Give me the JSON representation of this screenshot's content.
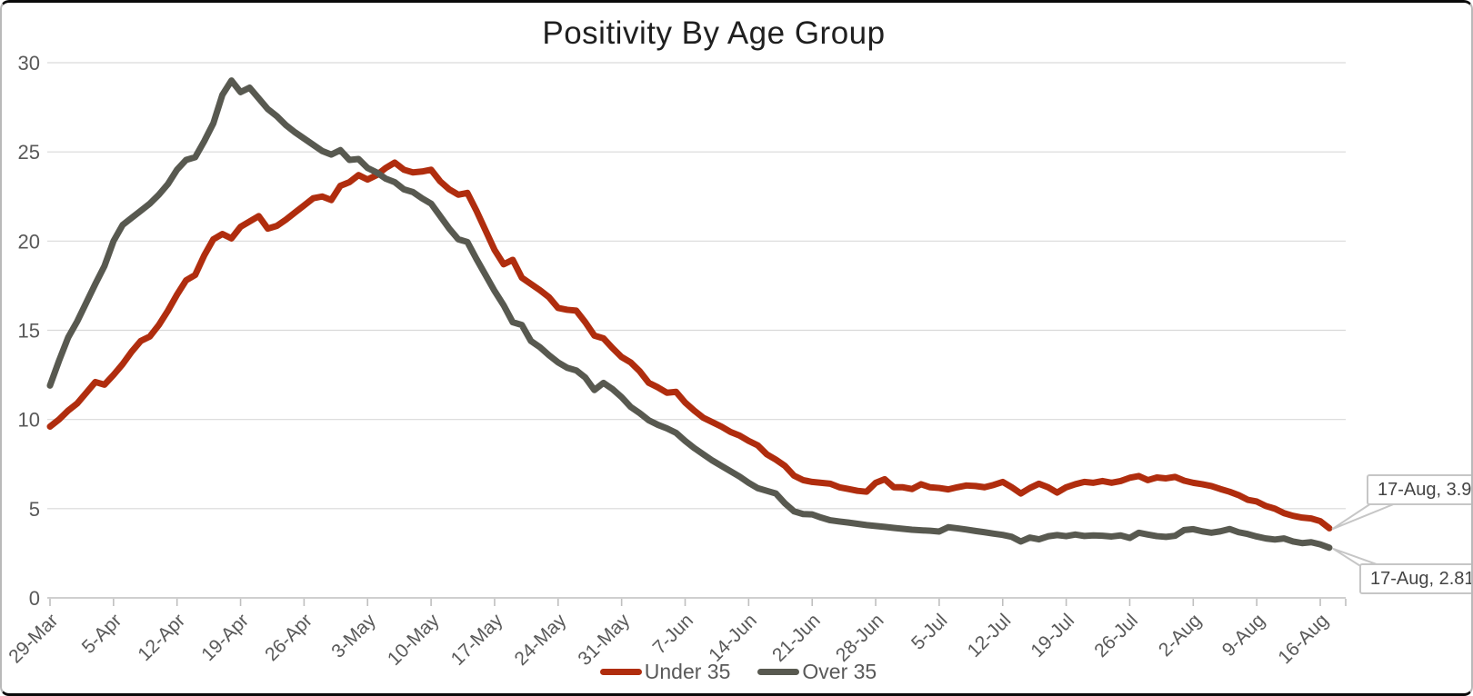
{
  "chart_data": {
    "type": "line",
    "title": "Positivity By Age Group",
    "xlabel": "",
    "ylabel": "",
    "ylim": [
      0,
      30
    ],
    "y_ticks": [
      0,
      5,
      10,
      15,
      20,
      25,
      30
    ],
    "grid": "horizontal",
    "legend_position": "bottom",
    "frequency": "daily",
    "x_first_point": "29-Mar",
    "x_last_point": "17-Aug",
    "x_tick_interval_days": 7,
    "x_tick_labels": [
      "29-Mar",
      "5-Apr",
      "12-Apr",
      "19-Apr",
      "26-Apr",
      "3-May",
      "10-May",
      "17-May",
      "24-May",
      "31-May",
      "7-Jun",
      "14-Jun",
      "21-Jun",
      "28-Jun",
      "5-Jul",
      "12-Jul",
      "19-Jul",
      "26-Jul",
      "2-Aug",
      "9-Aug",
      "16-Aug"
    ],
    "series": [
      {
        "name": "Under 35",
        "color": "#b02d0e",
        "values": [
          9.6,
          10.0,
          10.5,
          10.9,
          11.5,
          12.1,
          11.95,
          12.5,
          13.1,
          13.8,
          14.4,
          14.65,
          15.3,
          16.1,
          17.0,
          17.8,
          18.1,
          19.2,
          20.1,
          20.4,
          20.15,
          20.8,
          21.1,
          21.4,
          20.7,
          20.85,
          21.2,
          21.6,
          22.0,
          22.4,
          22.5,
          22.3,
          23.1,
          23.3,
          23.7,
          23.45,
          23.7,
          24.1,
          24.4,
          24.0,
          23.85,
          23.9,
          24.0,
          23.35,
          22.9,
          22.6,
          22.7,
          21.7,
          20.6,
          19.5,
          18.7,
          18.95,
          17.95,
          17.6,
          17.25,
          16.85,
          16.25,
          16.15,
          16.1,
          15.45,
          14.7,
          14.55,
          14.0,
          13.5,
          13.2,
          12.7,
          12.05,
          11.8,
          11.5,
          11.55,
          10.95,
          10.5,
          10.1,
          9.85,
          9.6,
          9.3,
          9.1,
          8.8,
          8.55,
          8.05,
          7.75,
          7.4,
          6.85,
          6.6,
          6.5,
          6.45,
          6.4,
          6.2,
          6.1,
          6.0,
          5.95,
          6.45,
          6.65,
          6.2,
          6.2,
          6.1,
          6.37,
          6.2,
          6.16,
          6.08,
          6.2,
          6.3,
          6.27,
          6.2,
          6.33,
          6.5,
          6.2,
          5.85,
          6.16,
          6.4,
          6.2,
          5.9,
          6.2,
          6.37,
          6.5,
          6.45,
          6.55,
          6.45,
          6.55,
          6.73,
          6.83,
          6.6,
          6.75,
          6.7,
          6.78,
          6.57,
          6.45,
          6.37,
          6.27,
          6.1,
          5.95,
          5.76,
          5.5,
          5.4,
          5.15,
          5.0,
          4.75,
          4.6,
          4.5,
          4.45,
          4.3,
          3.9
        ]
      },
      {
        "name": "Over 35",
        "color": "#585950",
        "values": [
          11.9,
          13.3,
          14.6,
          15.5,
          16.55,
          17.6,
          18.6,
          20.0,
          20.9,
          21.3,
          21.7,
          22.1,
          22.6,
          23.2,
          24.0,
          24.55,
          24.7,
          25.6,
          26.6,
          28.2,
          29.0,
          28.35,
          28.6,
          28.0,
          27.4,
          27.0,
          26.5,
          26.1,
          25.75,
          25.4,
          25.05,
          24.85,
          25.1,
          24.55,
          24.6,
          24.1,
          23.85,
          23.5,
          23.3,
          22.9,
          22.75,
          22.4,
          22.1,
          21.4,
          20.7,
          20.1,
          19.95,
          19.0,
          18.1,
          17.2,
          16.4,
          15.45,
          15.3,
          14.4,
          14.05,
          13.6,
          13.2,
          12.9,
          12.75,
          12.35,
          11.65,
          12.05,
          11.7,
          11.25,
          10.7,
          10.35,
          9.95,
          9.7,
          9.5,
          9.25,
          8.8,
          8.4,
          8.05,
          7.7,
          7.4,
          7.1,
          6.8,
          6.45,
          6.15,
          6.0,
          5.85,
          5.3,
          4.85,
          4.7,
          4.68,
          4.5,
          4.35,
          4.28,
          4.22,
          4.15,
          4.08,
          4.03,
          3.98,
          3.92,
          3.87,
          3.82,
          3.79,
          3.76,
          3.72,
          3.96,
          3.9,
          3.83,
          3.75,
          3.68,
          3.6,
          3.53,
          3.42,
          3.16,
          3.38,
          3.28,
          3.45,
          3.52,
          3.46,
          3.55,
          3.47,
          3.5,
          3.48,
          3.44,
          3.5,
          3.36,
          3.65,
          3.55,
          3.46,
          3.42,
          3.48,
          3.8,
          3.85,
          3.73,
          3.65,
          3.73,
          3.86,
          3.68,
          3.58,
          3.44,
          3.33,
          3.27,
          3.33,
          3.16,
          3.07,
          3.12,
          3.0,
          2.81
        ]
      }
    ],
    "annotations": [
      {
        "text": "17-Aug, 3.9",
        "series": "Under 35",
        "value": 3.9
      },
      {
        "text": "17-Aug, 2.81",
        "series": "Over 35",
        "value": 2.81
      }
    ]
  },
  "axis_colors": {
    "gridline": "#d9d9d9",
    "axis_line": "#bfbfbf",
    "tick_text": "#595959"
  }
}
